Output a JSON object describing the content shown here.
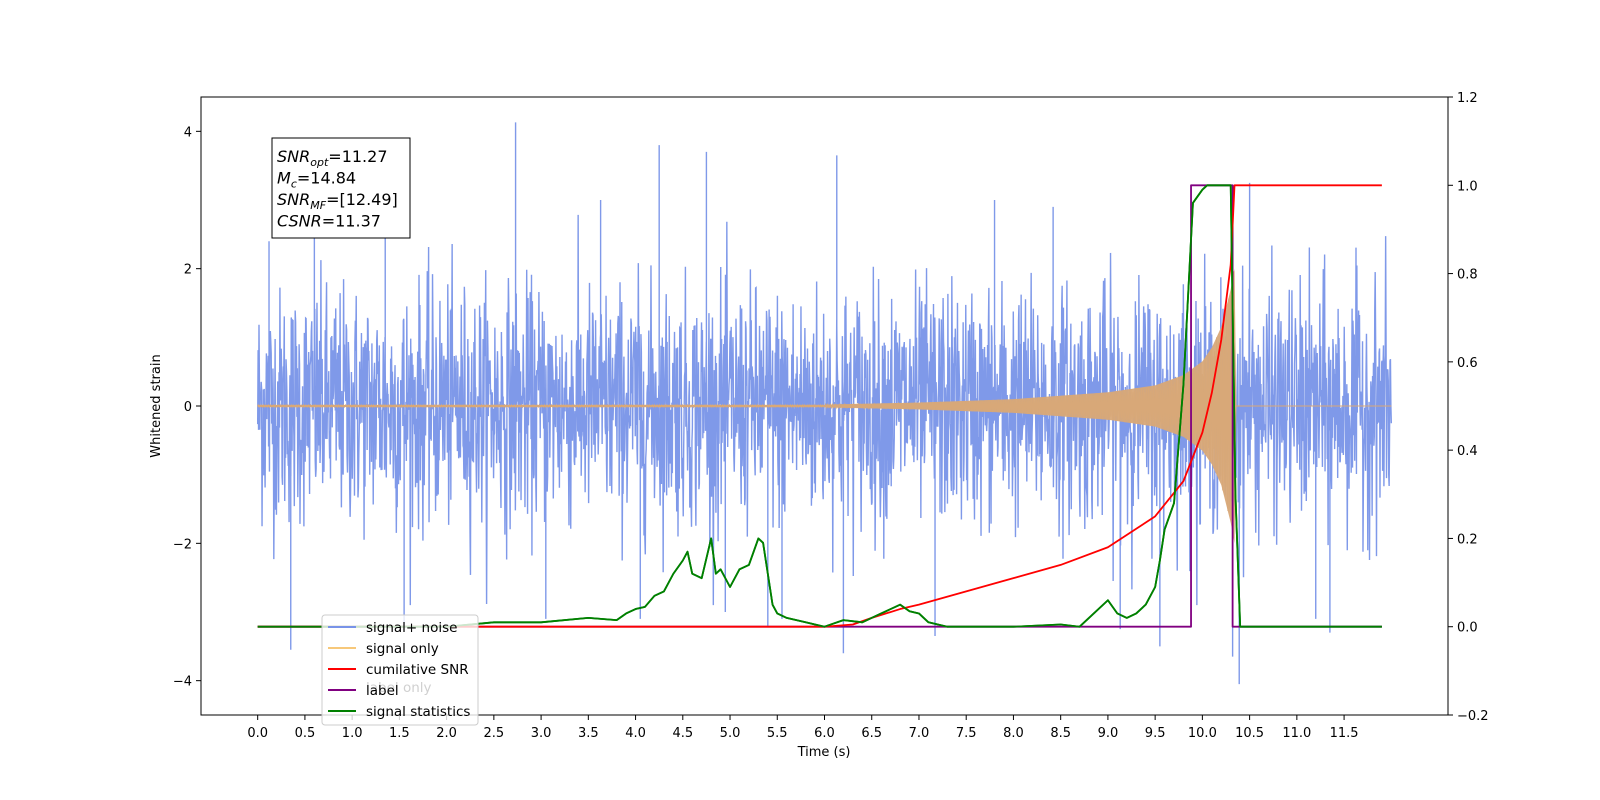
{
  "chart_data": {
    "type": "line",
    "xlabel": "Time (s)",
    "ylabel": "Whitened strain",
    "xlim": [
      -0.6,
      12.6
    ],
    "ylim": [
      -4.5,
      4.5
    ],
    "y2lim": [
      -0.2,
      1.2
    ],
    "grid": false,
    "legend_position": "lower-left",
    "x_ticks": [
      "0.0",
      "0.5",
      "1.0",
      "1.5",
      "2.0",
      "2.5",
      "3.0",
      "3.5",
      "4.0",
      "4.5",
      "5.0",
      "5.5",
      "6.0",
      "6.5",
      "7.0",
      "7.5",
      "8.0",
      "8.5",
      "9.0",
      "9.5",
      "10.0",
      "10.5",
      "11.0",
      "11.5"
    ],
    "y_ticks": [
      -4,
      -2,
      0,
      2,
      4
    ],
    "y2_ticks": [
      "−0.2",
      "0.0",
      "0.2",
      "0.4",
      "0.6",
      "0.8",
      "1.0",
      "1.2"
    ],
    "annotation_lines": [
      {
        "main": "SNR",
        "sub": "opt",
        "rest": "=11.27"
      },
      {
        "main": "M",
        "sub": "c",
        "rest": "=14.84"
      },
      {
        "main": "SNR",
        "sub": "MF",
        "rest": "=[12.49]"
      },
      {
        "main": "CSNR",
        "sub": "",
        "rest": "=11.37"
      }
    ],
    "legend": [
      {
        "label": "signal+ noise",
        "color": "#7893e8"
      },
      {
        "label": "signal only",
        "color": "#f7c87a"
      },
      {
        "label": "cumilative SNR",
        "color": "#ff0000"
      },
      {
        "label": "label",
        "color": "#800080"
      },
      {
        "label": "signal statistics",
        "color": "#008000"
      }
    ],
    "ghost_legend_text": "label only",
    "series": [
      {
        "name": "signal+ noise",
        "axis": "left",
        "color": "#7893e8",
        "description": "noise band between about -2 and +2.5 strain, with spikes up to about 4.1 and down to about -4.0",
        "x": [
          0.0,
          12.0
        ],
        "upper_envelope": 2.3,
        "lower_envelope": -2.1,
        "spikes": [
          [
            0.12,
            2.4
          ],
          [
            0.35,
            -3.55
          ],
          [
            0.6,
            2.7
          ],
          [
            1.35,
            3.0
          ],
          [
            1.55,
            -3.2
          ],
          [
            2.73,
            4.13
          ],
          [
            3.05,
            -3.1
          ],
          [
            3.63,
            3.0
          ],
          [
            4.05,
            -3.1
          ],
          [
            4.25,
            3.8
          ],
          [
            4.75,
            3.7
          ],
          [
            4.95,
            -3.0
          ],
          [
            5.4,
            -3.2
          ],
          [
            5.55,
            -3.1
          ],
          [
            6.13,
            3.65
          ],
          [
            6.2,
            -3.6
          ],
          [
            7.17,
            -3.35
          ],
          [
            7.8,
            3.0
          ],
          [
            8.42,
            2.9
          ],
          [
            9.13,
            -3.25
          ],
          [
            9.55,
            -3.5
          ],
          [
            10.32,
            -3.65
          ],
          [
            10.39,
            -4.05
          ],
          [
            10.5,
            3.25
          ],
          [
            11.2,
            -3.1
          ],
          [
            11.35,
            -3.3
          ]
        ]
      },
      {
        "name": "signal only",
        "axis": "left",
        "color": "#d8a878",
        "description": "chirp, flat near 0 until about 6.5 s, amplitude growing to about 2.0 at 10.34 s, then 0",
        "x": [
          6.0,
          7.0,
          8.0,
          9.0,
          9.5,
          9.8,
          10.0,
          10.1,
          10.2,
          10.3,
          10.34,
          10.35,
          12.0
        ],
        "amplitude": [
          0.02,
          0.05,
          0.1,
          0.2,
          0.3,
          0.45,
          0.65,
          0.85,
          1.15,
          1.7,
          2.0,
          0.0,
          0.0
        ]
      },
      {
        "name": "cumilative SNR",
        "axis": "right",
        "color": "#ff0000",
        "x": [
          0.0,
          5.9,
          6.0,
          6.3,
          6.5,
          6.8,
          7.0,
          7.5,
          8.0,
          8.5,
          9.0,
          9.5,
          9.8,
          10.0,
          10.1,
          10.2,
          10.3,
          10.34,
          10.36,
          11.9
        ],
        "values": [
          0.0,
          0.0,
          0.0,
          0.005,
          0.02,
          0.04,
          0.05,
          0.08,
          0.11,
          0.14,
          0.18,
          0.25,
          0.33,
          0.44,
          0.53,
          0.65,
          0.82,
          1.0,
          1.0,
          1.0
        ]
      },
      {
        "name": "label",
        "axis": "right",
        "color": "#800080",
        "x": [
          0.0,
          9.88,
          9.88,
          10.32,
          10.32,
          11.9
        ],
        "values": [
          0.0,
          0.0,
          1.0,
          1.0,
          0.0,
          0.0
        ]
      },
      {
        "name": "signal statistics",
        "axis": "right",
        "color": "#008000",
        "x": [
          0.0,
          2.0,
          2.5,
          3.0,
          3.5,
          3.8,
          3.9,
          4.0,
          4.1,
          4.2,
          4.3,
          4.4,
          4.5,
          4.55,
          4.6,
          4.7,
          4.8,
          4.85,
          4.9,
          5.0,
          5.1,
          5.2,
          5.3,
          5.35,
          5.4,
          5.45,
          5.5,
          5.6,
          5.8,
          6.0,
          6.2,
          6.4,
          6.6,
          6.8,
          6.9,
          7.0,
          7.1,
          7.3,
          7.5,
          8.0,
          8.5,
          8.7,
          9.0,
          9.1,
          9.2,
          9.3,
          9.4,
          9.5,
          9.55,
          9.6,
          9.7,
          9.8,
          9.9,
          10.0,
          10.05,
          10.1,
          10.3,
          10.35,
          10.4,
          11.9
        ],
        "values": [
          0.0,
          0.0,
          0.01,
          0.01,
          0.02,
          0.015,
          0.03,
          0.04,
          0.045,
          0.07,
          0.08,
          0.12,
          0.15,
          0.17,
          0.12,
          0.11,
          0.2,
          0.12,
          0.13,
          0.09,
          0.13,
          0.14,
          0.2,
          0.19,
          0.12,
          0.05,
          0.03,
          0.02,
          0.01,
          0.0,
          0.015,
          0.01,
          0.03,
          0.05,
          0.035,
          0.03,
          0.01,
          0.0,
          0.0,
          0.0,
          0.005,
          0.0,
          0.06,
          0.03,
          0.02,
          0.03,
          0.05,
          0.09,
          0.15,
          0.22,
          0.28,
          0.55,
          0.96,
          0.99,
          1.0,
          1.0,
          1.0,
          0.3,
          0.0,
          0.0
        ]
      }
    ]
  }
}
